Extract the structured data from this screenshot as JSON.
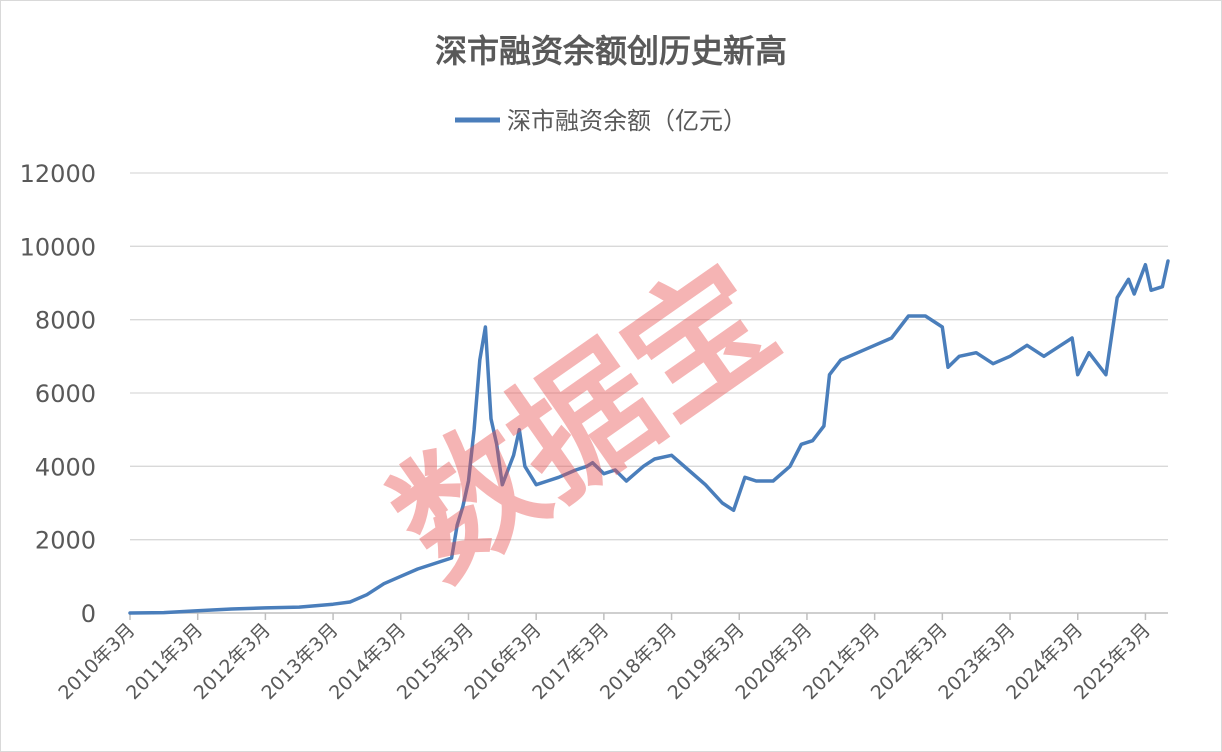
{
  "chart_data": {
    "type": "line",
    "title": "深市融资余额创历史新高",
    "legend": "top-center",
    "series": [
      {
        "name": "深市融资余额（亿元）",
        "color": "#4a7ebb",
        "points": [
          [
            "2010-03",
            0
          ],
          [
            "2010-09",
            10
          ],
          [
            "2011-03",
            60
          ],
          [
            "2011-09",
            110
          ],
          [
            "2012-03",
            140
          ],
          [
            "2012-09",
            160
          ],
          [
            "2013-03",
            240
          ],
          [
            "2013-06",
            300
          ],
          [
            "2013-09",
            500
          ],
          [
            "2013-12",
            800
          ],
          [
            "2014-03",
            1000
          ],
          [
            "2014-06",
            1200
          ],
          [
            "2014-09",
            1350
          ],
          [
            "2014-12",
            1500
          ],
          [
            "2015-01",
            2400
          ],
          [
            "2015-02",
            2900
          ],
          [
            "2015-03",
            3600
          ],
          [
            "2015-04",
            5000
          ],
          [
            "2015-05",
            6900
          ],
          [
            "2015-06",
            7800
          ],
          [
            "2015-07",
            5300
          ],
          [
            "2015-08",
            4600
          ],
          [
            "2015-09",
            3500
          ],
          [
            "2015-11",
            4300
          ],
          [
            "2015-12",
            5000
          ],
          [
            "2016-01",
            4000
          ],
          [
            "2016-03",
            3500
          ],
          [
            "2016-05",
            3600
          ],
          [
            "2016-07",
            3700
          ],
          [
            "2016-10",
            3900
          ],
          [
            "2016-12",
            4000
          ],
          [
            "2017-01",
            4100
          ],
          [
            "2017-03",
            3800
          ],
          [
            "2017-05",
            3900
          ],
          [
            "2017-07",
            3600
          ],
          [
            "2017-10",
            4000
          ],
          [
            "2017-12",
            4200
          ],
          [
            "2018-03",
            4300
          ],
          [
            "2018-06",
            3900
          ],
          [
            "2018-09",
            3500
          ],
          [
            "2018-12",
            3000
          ],
          [
            "2019-02",
            2800
          ],
          [
            "2019-04",
            3700
          ],
          [
            "2019-06",
            3600
          ],
          [
            "2019-09",
            3600
          ],
          [
            "2019-12",
            4000
          ],
          [
            "2020-02",
            4600
          ],
          [
            "2020-04",
            4700
          ],
          [
            "2020-06",
            5100
          ],
          [
            "2020-07",
            6500
          ],
          [
            "2020-09",
            6900
          ],
          [
            "2020-12",
            7100
          ],
          [
            "2021-03",
            7300
          ],
          [
            "2021-06",
            7500
          ],
          [
            "2021-09",
            8100
          ],
          [
            "2021-12",
            8100
          ],
          [
            "2022-03",
            7800
          ],
          [
            "2022-04",
            6700
          ],
          [
            "2022-06",
            7000
          ],
          [
            "2022-09",
            7100
          ],
          [
            "2022-12",
            6800
          ],
          [
            "2023-03",
            7000
          ],
          [
            "2023-06",
            7300
          ],
          [
            "2023-09",
            7000
          ],
          [
            "2023-12",
            7300
          ],
          [
            "2024-02",
            7500
          ],
          [
            "2024-03",
            6500
          ],
          [
            "2024-05",
            7100
          ],
          [
            "2024-08",
            6500
          ],
          [
            "2024-10",
            8600
          ],
          [
            "2024-12",
            9100
          ],
          [
            "2025-01",
            8700
          ],
          [
            "2025-03",
            9500
          ],
          [
            "2025-04",
            8800
          ],
          [
            "2025-06",
            8900
          ],
          [
            "2025-07",
            9600
          ]
        ]
      }
    ],
    "x": {
      "ticks": [
        "2010年3月",
        "2011年3月",
        "2012年3月",
        "2013年3月",
        "2014年3月",
        "2015年3月",
        "2016年3月",
        "2017年3月",
        "2018年3月",
        "2019年3月",
        "2020年3月",
        "2021年3月",
        "2022年3月",
        "2023年3月",
        "2024年3月",
        "2025年3月"
      ],
      "range": [
        "2010-03",
        "2025-07"
      ]
    },
    "y": {
      "ticks": [
        0,
        2000,
        4000,
        6000,
        8000,
        10000,
        12000
      ],
      "ylim": [
        0,
        12000
      ]
    },
    "grid": true,
    "watermark": "数据宝"
  }
}
